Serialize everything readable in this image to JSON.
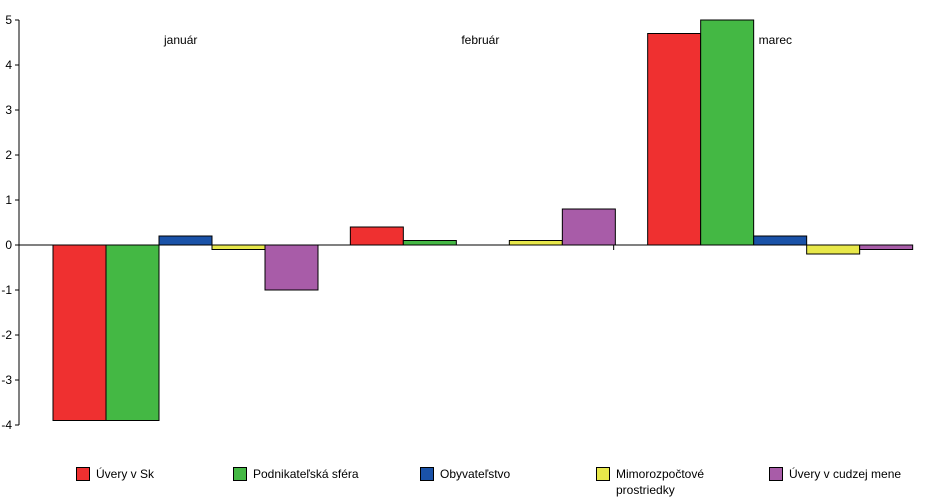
{
  "chart_data": {
    "type": "bar",
    "categories": [
      "január",
      "február",
      "marec"
    ],
    "ylim": [
      -4,
      5
    ],
    "yticks": [
      5,
      4,
      3,
      2,
      1,
      0,
      -1,
      -2,
      -3,
      -4
    ],
    "grid": false,
    "legend_position": "bottom",
    "series": [
      {
        "name": "Úvery v Sk",
        "color": "#ef3030",
        "values": [
          -3.9,
          0.4,
          4.7
        ]
      },
      {
        "name": "Podnikateľská sféra",
        "color": "#44b844",
        "values": [
          -3.9,
          0.1,
          5.0
        ]
      },
      {
        "name": "Obyvateľstvo",
        "color": "#1a52a8",
        "values": [
          0.2,
          0.0,
          0.2
        ]
      },
      {
        "name": "Mimorozpočtové prostriedky",
        "color": "#e8e84a",
        "values": [
          -0.1,
          0.1,
          -0.2
        ]
      },
      {
        "name": "Úvery v cudzej mene",
        "color": "#a85ca8",
        "values": [
          -1.0,
          0.8,
          -0.1
        ]
      }
    ]
  }
}
